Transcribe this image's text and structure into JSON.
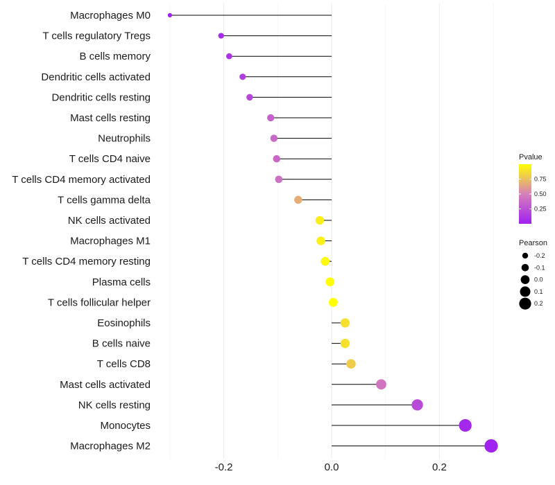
{
  "chart_data": {
    "type": "lollipop",
    "title": "",
    "xlabel": "",
    "ylabel": "",
    "xlim": [
      -0.31,
      0.31
    ],
    "x_ticks": [
      {
        "value": -0.2,
        "label": "-0.2"
      },
      {
        "value": 0.0,
        "label": "0.0"
      },
      {
        "value": 0.2,
        "label": "0.2"
      }
    ],
    "categories": [
      "Macrophages M0",
      "T cells regulatory  Tregs",
      "B cells memory",
      "Dendritic cells activated",
      "Dendritic cells resting",
      "Mast cells resting",
      "Neutrophils",
      "T cells CD4 naive",
      "T cells CD4 memory activated",
      "T cells gamma delta",
      "NK cells activated",
      "Macrophages M1",
      "T cells CD4 memory resting",
      "Plasma cells",
      "T cells follicular helper",
      "Eosinophils",
      "B cells naive",
      "T cells CD8",
      "Mast cells activated",
      "NK cells resting",
      "Monocytes",
      "Macrophages M2"
    ],
    "pearson": [
      -0.3,
      -0.205,
      -0.19,
      -0.165,
      -0.152,
      -0.113,
      -0.107,
      -0.102,
      -0.098,
      -0.062,
      -0.022,
      -0.02,
      -0.012,
      -0.003,
      0.003,
      0.025,
      0.025,
      0.036,
      0.092,
      0.159,
      0.248,
      0.296
    ],
    "pvalue": [
      0.0,
      0.06,
      0.1,
      0.16,
      0.2,
      0.34,
      0.38,
      0.37,
      0.42,
      0.68,
      0.93,
      0.95,
      0.98,
      1.0,
      1.0,
      0.88,
      0.88,
      0.8,
      0.44,
      0.22,
      0.04,
      0.01
    ],
    "legend": {
      "color": {
        "title": "Pvalue",
        "ticks": [
          {
            "value": 0.75,
            "label": "0.75"
          },
          {
            "value": 0.5,
            "label": "0.50"
          },
          {
            "value": 0.25,
            "label": "0.25"
          }
        ],
        "low_color": "#a020f0",
        "mid_color": "#d680ba",
        "high_color": "#ffff00"
      },
      "size": {
        "title": "Pearson",
        "entries": [
          {
            "value": -0.2,
            "label": "-0.2"
          },
          {
            "value": -0.1,
            "label": "-0.1"
          },
          {
            "value": 0.0,
            "label": "0.0"
          },
          {
            "value": 0.1,
            "label": "0.1"
          },
          {
            "value": 0.2,
            "label": "0.2"
          }
        ]
      }
    }
  }
}
